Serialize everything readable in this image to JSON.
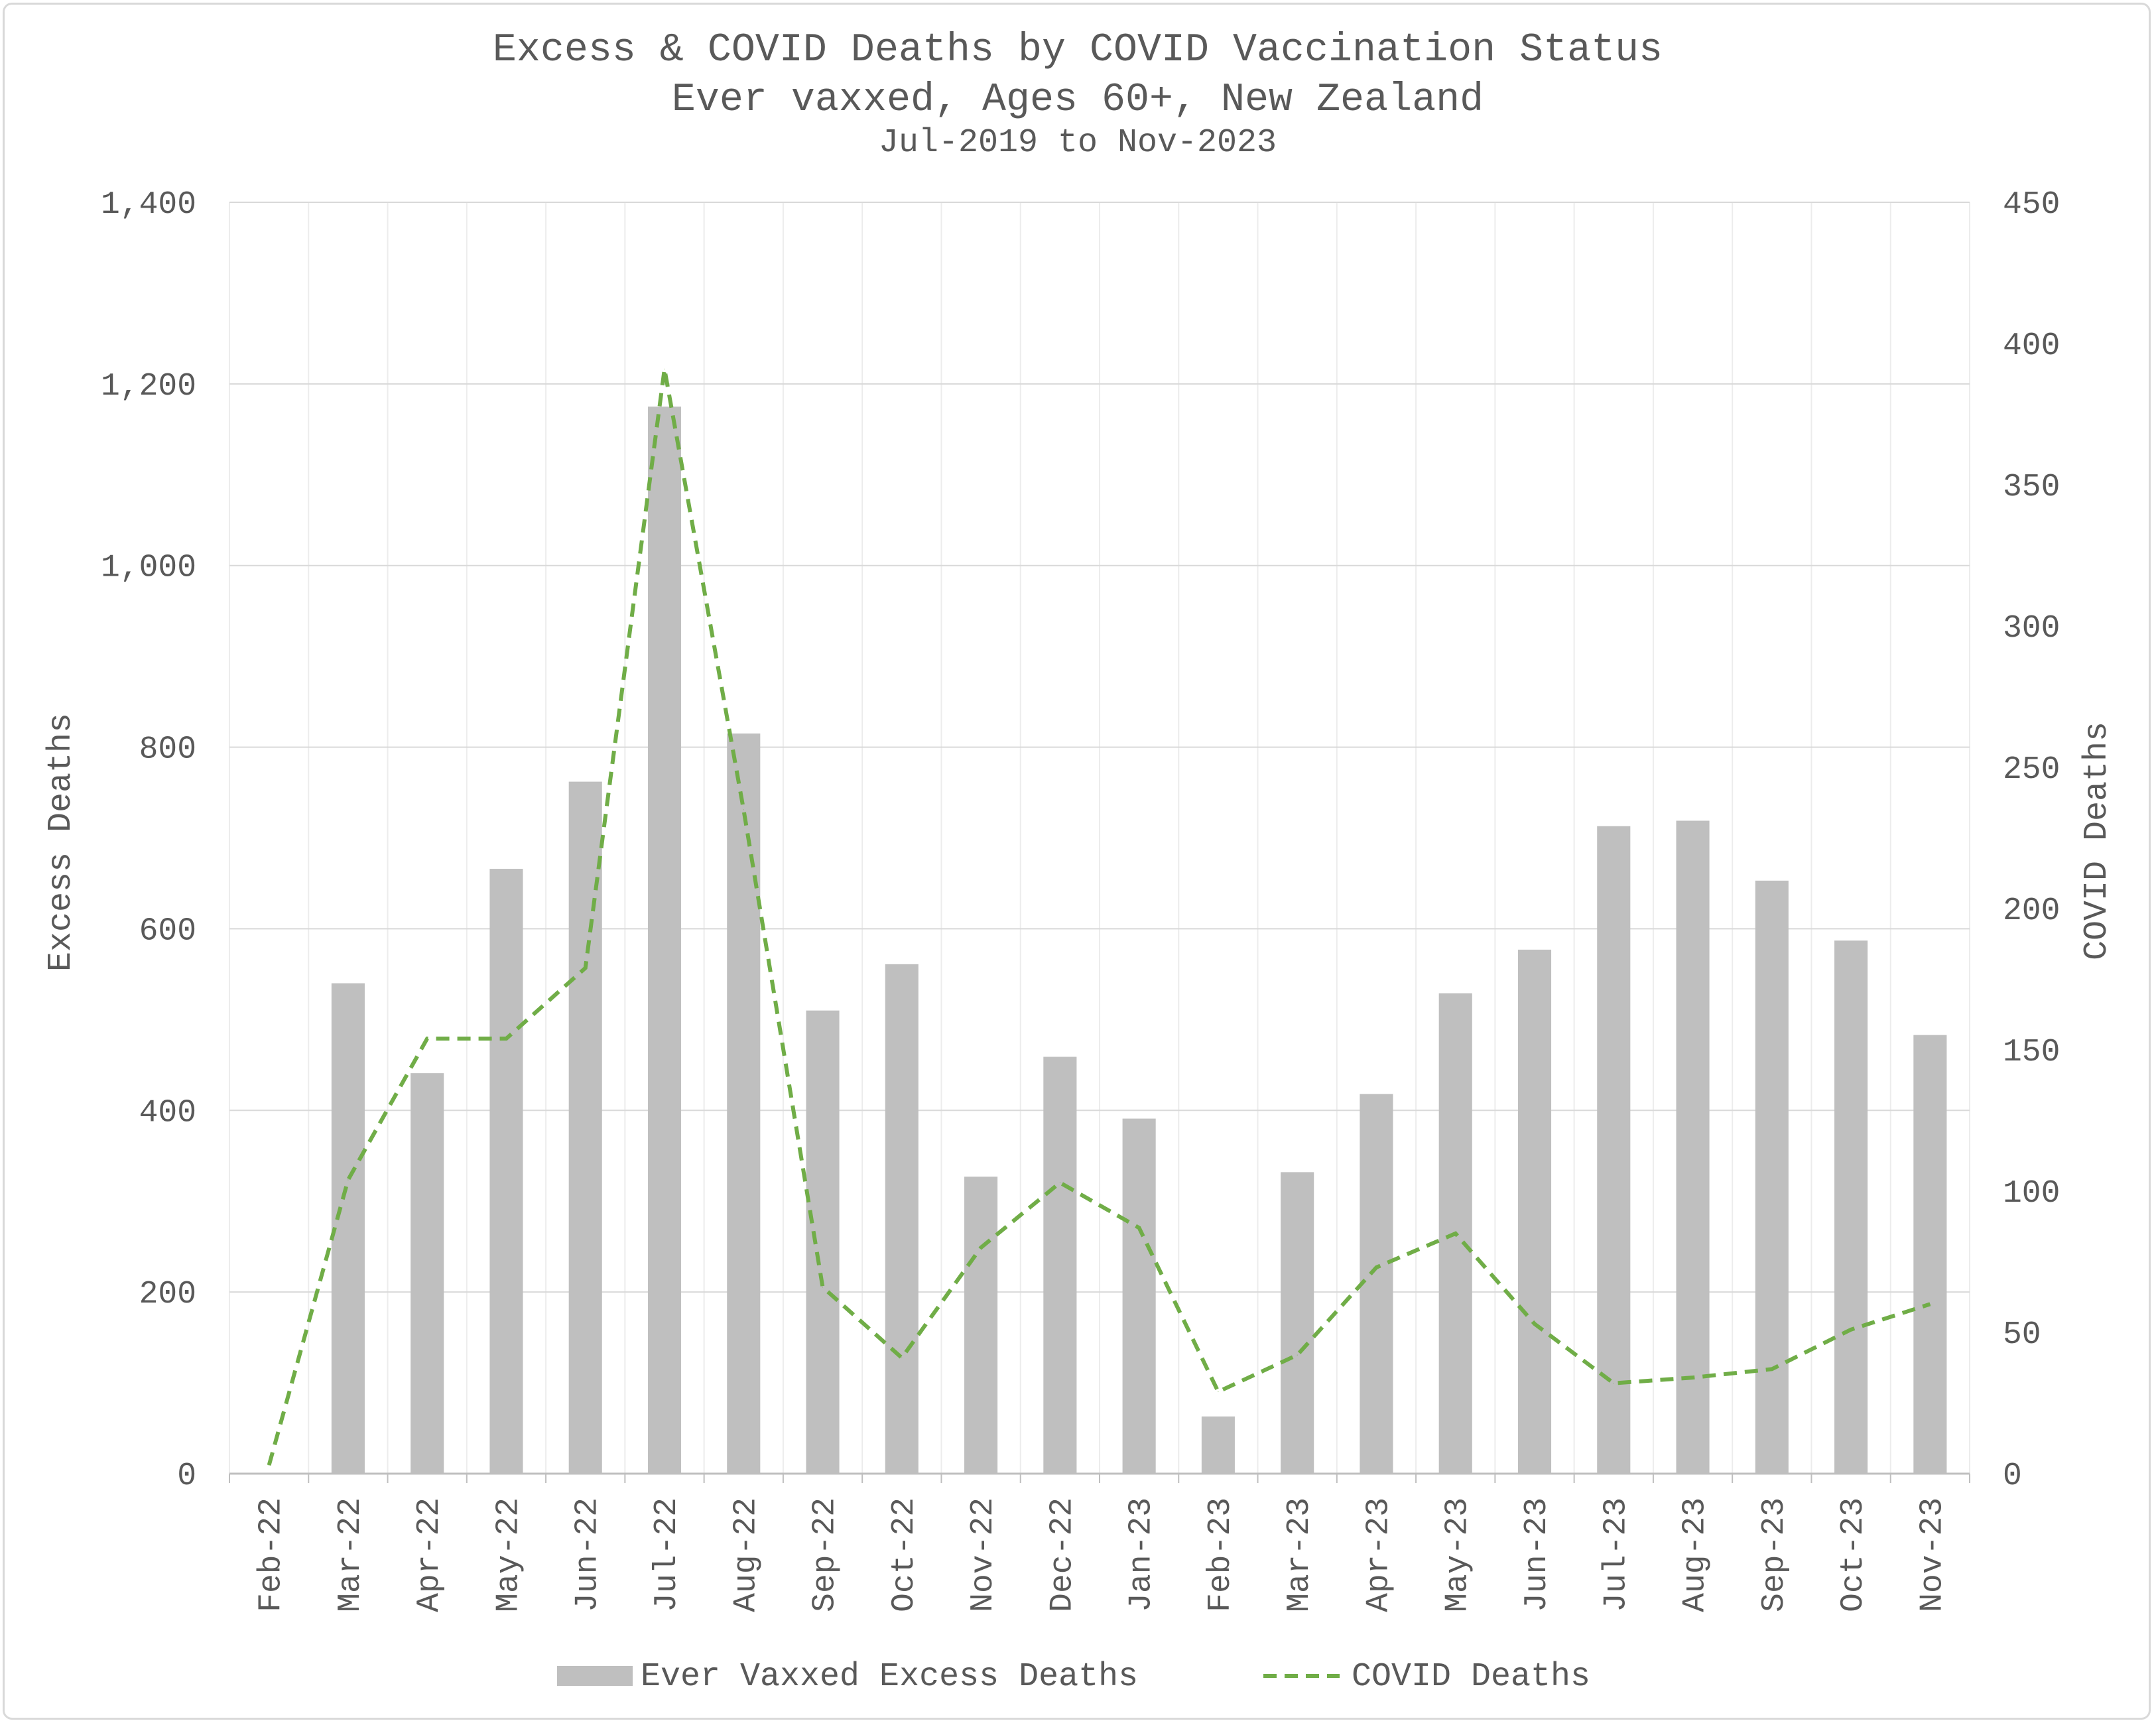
{
  "chart_data": {
    "type": "bar",
    "title": "Excess & COVID Deaths by COVID Vaccination Status",
    "subtitle": "Ever vaxxed, Ages 60+, New Zealand",
    "subtitle2": "Jul-2019 to Nov-2023",
    "ylabel": "Excess Deaths",
    "y2label": "COVID Deaths",
    "ylim": [
      0,
      1400
    ],
    "y2lim": [
      0,
      450
    ],
    "yticks": [
      "0",
      "200",
      "400",
      "600",
      "800",
      "1,000",
      "1,200",
      "1,400"
    ],
    "y2ticks": [
      "0",
      "50",
      "100",
      "150",
      "200",
      "250",
      "300",
      "350",
      "400",
      "450"
    ],
    "grid": true,
    "legend_position": "bottom",
    "categories": [
      "Feb-22",
      "Mar-22",
      "Apr-22",
      "May-22",
      "Jun-22",
      "Jul-22",
      "Aug-22",
      "Sep-22",
      "Oct-22",
      "Nov-22",
      "Dec-22",
      "Jan-23",
      "Feb-23",
      "Mar-23",
      "Apr-23",
      "May-23",
      "Jun-23",
      "Jul-23",
      "Aug-23",
      "Sep-23",
      "Oct-23",
      "Nov-23"
    ],
    "series": [
      {
        "name": "Ever Vaxxed Excess Deaths",
        "type": "bar",
        "axis": "left",
        "color": "#bfbfbf",
        "values": [
          null,
          540,
          441,
          666,
          762,
          1175,
          815,
          510,
          561,
          327,
          459,
          391,
          63,
          332,
          418,
          529,
          577,
          713,
          719,
          653,
          587,
          483
        ]
      },
      {
        "name": "COVID Deaths",
        "type": "line",
        "axis": "right",
        "style": "dashed",
        "color": "#70ad47",
        "values": [
          3,
          104,
          154,
          154,
          179,
          391,
          235,
          66,
          41,
          80,
          103,
          87,
          29,
          42,
          73,
          85,
          53,
          32,
          34,
          37,
          51,
          60
        ]
      }
    ]
  }
}
